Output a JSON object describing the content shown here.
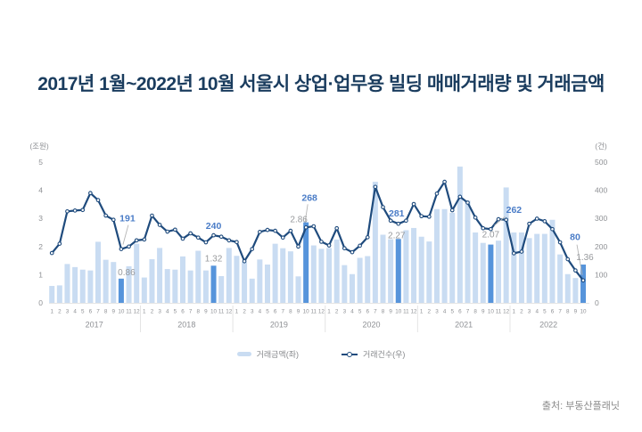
{
  "title": "2017년 1월~2022년 10월 서울시 상업·업무용 빌딩 매매거래량 및 거래금액",
  "source": "출처: 부동산플래닛",
  "legend": {
    "items": [
      {
        "label": "거래금액(좌)",
        "type": "bar-swatch"
      },
      {
        "label": "거래건수(우)",
        "type": "line-marker"
      }
    ]
  },
  "colors": {
    "title": "#1a3c5e",
    "bar": "#c9dcf2",
    "bar_highlight": "#5694db",
    "line": "#1f4b7d",
    "annotation_count": "#4a7cc7",
    "annotation_amount": "#97999c",
    "axis_text": "#8e9094",
    "divider": "#e4e4e4",
    "connector": "#b5b5b5"
  },
  "chart_data": {
    "type": "bar",
    "title": "2017년 1월~2022년 10월 서울시 상업·업무용 빌딩 매매거래량 및 거래금액",
    "grid": false,
    "legend_position": "bottom",
    "x_years": [
      {
        "year": "2017",
        "n_months": 12
      },
      {
        "year": "2018",
        "n_months": 12
      },
      {
        "year": "2019",
        "n_months": 12
      },
      {
        "year": "2020",
        "n_months": 12
      },
      {
        "year": "2021",
        "n_months": 12
      },
      {
        "year": "2022",
        "n_months": 10
      }
    ],
    "left_axis": {
      "unit_label": "(조원)",
      "ticks": [
        0,
        1,
        2,
        3,
        4,
        5
      ],
      "min": 0,
      "max": 5
    },
    "right_axis": {
      "unit_label": "(건)",
      "ticks": [
        0,
        100,
        200,
        300,
        400,
        500
      ],
      "min": 0,
      "max": 500
    },
    "series": [
      {
        "name": "거래금액(좌)",
        "type": "bar",
        "axis": "left",
        "unit": "조원",
        "values": [
          0.6,
          0.62,
          1.38,
          1.27,
          1.18,
          1.15,
          2.17,
          1.53,
          1.45,
          0.86,
          1.3,
          2.1,
          0.9,
          1.55,
          1.95,
          1.2,
          1.18,
          1.65,
          1.15,
          1.85,
          1.15,
          1.32,
          0.95,
          1.95,
          1.67,
          1.45,
          0.86,
          1.54,
          1.36,
          2.1,
          1.94,
          1.83,
          0.94,
          2.86,
          2.04,
          1.92,
          1.95,
          2.25,
          1.34,
          1.02,
          1.6,
          1.66,
          4.3,
          2.42,
          2.26,
          2.27,
          2.58,
          2.66,
          2.35,
          2.18,
          3.33,
          3.33,
          3.2,
          4.84,
          3.63,
          2.5,
          2.13,
          2.07,
          2.21,
          4.1,
          2.5,
          2.5,
          2.3,
          2.45,
          2.45,
          2.95,
          1.72,
          1.02,
          0.88,
          1.36
        ]
      },
      {
        "name": "거래건수(우)",
        "type": "line",
        "axis": "right",
        "unit": "건",
        "values": [
          177,
          210,
          325,
          328,
          330,
          390,
          365,
          310,
          295,
          191,
          200,
          222,
          225,
          310,
          277,
          253,
          260,
          228,
          247,
          232,
          215,
          240,
          235,
          222,
          216,
          148,
          191,
          252,
          259,
          256,
          232,
          256,
          200,
          268,
          272,
          217,
          204,
          265,
          194,
          180,
          203,
          233,
          412,
          340,
          292,
          281,
          292,
          351,
          308,
          306,
          388,
          430,
          329,
          377,
          356,
          303,
          265,
          262,
          297,
          295,
          176,
          182,
          281,
          299,
          290,
          262,
          215,
          155,
          115,
          80
        ]
      }
    ],
    "annotations": [
      {
        "index": 9,
        "month": "2017-10",
        "count": 191,
        "amount": 0.86
      },
      {
        "index": 21,
        "month": "2018-10",
        "count": 240,
        "amount": 1.32
      },
      {
        "index": 33,
        "month": "2019-10",
        "count": 268,
        "amount": 2.86
      },
      {
        "index": 45,
        "month": "2020-10",
        "count": 281,
        "amount": 2.27
      },
      {
        "index": 57,
        "month": "2021-10",
        "count": 262,
        "amount": 2.07
      },
      {
        "index": 69,
        "month": "2022-10",
        "count": 80,
        "amount": 1.36
      }
    ]
  }
}
